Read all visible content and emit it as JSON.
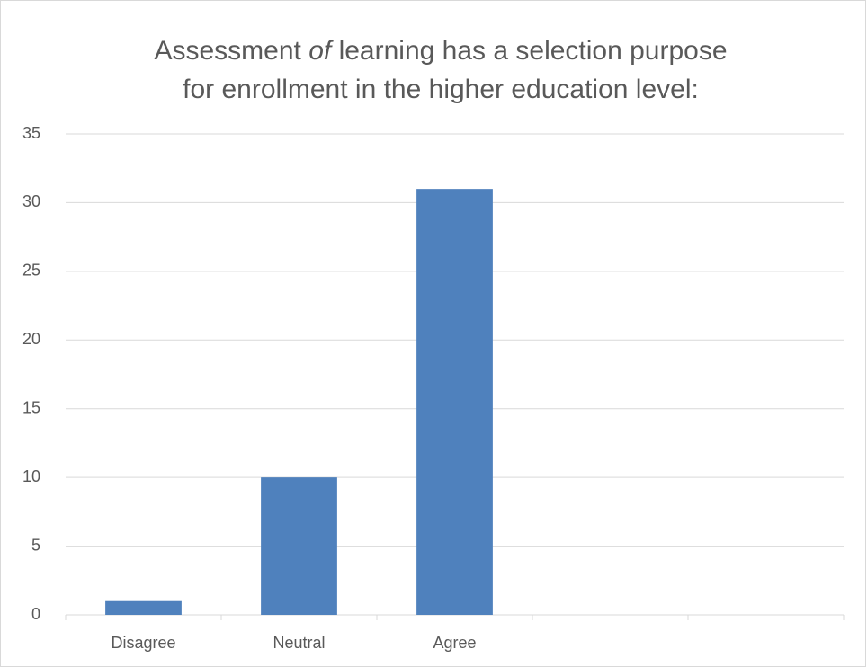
{
  "chart_data": {
    "type": "bar",
    "title": {
      "line1": [
        "Assessment",
        "of",
        "learning has a selection purpose"
      ],
      "line2": "for enrollment in the higher education level:"
    },
    "categories": [
      "Disagree",
      "Neutral",
      "Agree",
      null,
      null
    ],
    "values": [
      1,
      10,
      31,
      null,
      null
    ],
    "color": "#4f81bd",
    "ylim": [
      0,
      35
    ],
    "yticks": [
      0,
      5,
      10,
      15,
      20,
      25,
      30,
      35
    ],
    "grid": true
  }
}
